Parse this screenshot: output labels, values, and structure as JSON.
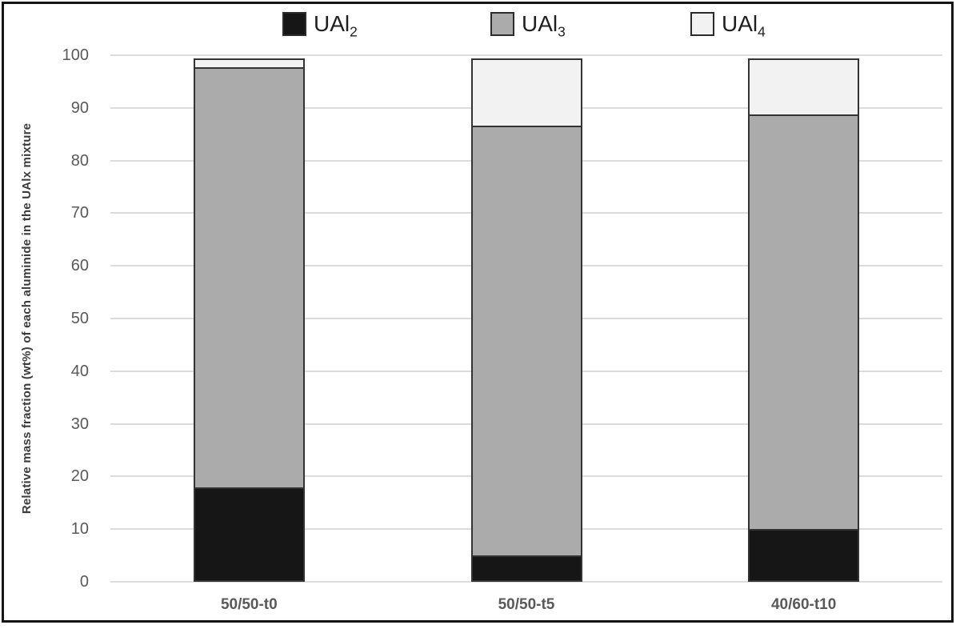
{
  "chart_data": {
    "type": "bar",
    "stacked": true,
    "title": "",
    "xlabel": "",
    "ylabel": "Relative mass fraction (wt%) of each aluminide in the UAlx mixture",
    "ylim": [
      0,
      100
    ],
    "ytick_step": 10,
    "yticks": [
      "0",
      "10",
      "20",
      "30",
      "40",
      "50",
      "60",
      "70",
      "80",
      "90",
      "100"
    ],
    "grid": true,
    "legend_position": "top",
    "categories": [
      "50/50-t0",
      "50/50-t5",
      "40/60-t10"
    ],
    "series": [
      {
        "name": "UAl2",
        "label_base": "UAl",
        "label_sub": "2",
        "color": "#161616",
        "values": [
          18,
          5,
          10
        ]
      },
      {
        "name": "UAl3",
        "label_base": "UAl",
        "label_sub": "3",
        "color": "#ababab",
        "values": [
          80,
          82,
          79
        ]
      },
      {
        "name": "UAl4",
        "label_base": "UAl",
        "label_sub": "4",
        "color": "#f2f2f2",
        "values": [
          2,
          13,
          11
        ]
      }
    ]
  },
  "colors": {
    "frame_border": "#141414",
    "gridline": "#dcdcdc",
    "segment_border": "#333333",
    "tick_text": "#595959",
    "axis_title_text": "#3b3b3b",
    "legend_text": "#1f1f1f",
    "background": "#ffffff"
  }
}
